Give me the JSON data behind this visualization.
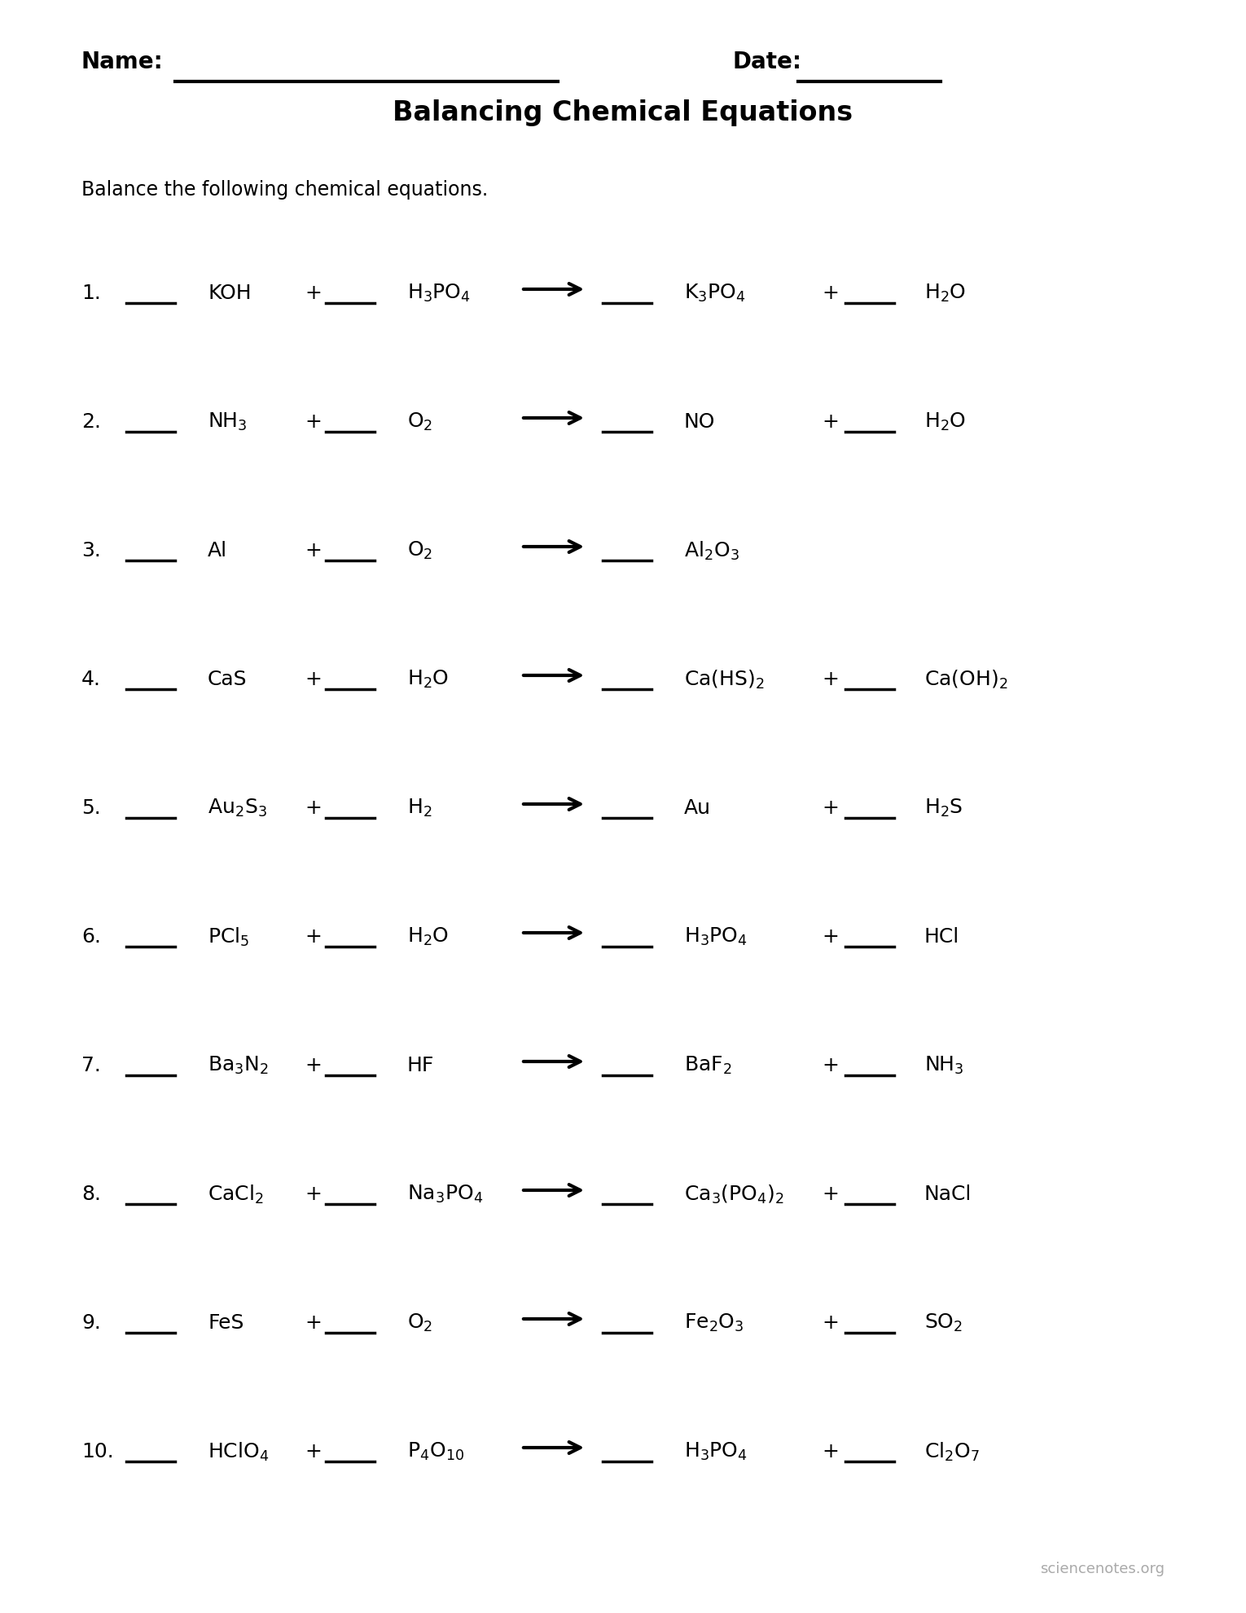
{
  "title": "Balancing Chemical Equations",
  "instruction": "Balance the following chemical equations.",
  "name_label": "Name:",
  "date_label": "Date:",
  "background": "#ffffff",
  "equations": [
    {
      "num": "1.",
      "items": [
        "KOH",
        "+",
        "H$_3$PO$_4$",
        "K$_3$PO$_4$",
        "+",
        "H$_2$O"
      ],
      "short": false
    },
    {
      "num": "2.",
      "items": [
        "NH$_3$",
        "+",
        "O$_2$",
        "NO",
        "+",
        "H$_2$O"
      ],
      "short": false
    },
    {
      "num": "3.",
      "items": [
        "Al",
        "+",
        "O$_2$",
        "Al$_2$O$_3$",
        "",
        ""
      ],
      "short": true
    },
    {
      "num": "4.",
      "items": [
        "CaS",
        "+",
        "H$_2$O",
        "Ca(HS)$_2$",
        "+",
        "Ca(OH)$_2$"
      ],
      "short": false
    },
    {
      "num": "5.",
      "items": [
        "Au$_2$S$_3$",
        "+",
        "H$_2$",
        "Au",
        "+",
        "H$_2$S"
      ],
      "short": false
    },
    {
      "num": "6.",
      "items": [
        "PCl$_5$",
        "+",
        "H$_2$O",
        "H$_3$PO$_4$",
        "+",
        "HCl"
      ],
      "short": false
    },
    {
      "num": "7.",
      "items": [
        "Ba$_3$N$_2$",
        "+",
        "HF",
        "BaF$_2$",
        "+",
        "NH$_3$"
      ],
      "short": false
    },
    {
      "num": "8.",
      "items": [
        "CaCl$_2$",
        "+",
        "Na$_3$PO$_4$",
        "Ca$_3$(PO$_4$)$_2$",
        "+",
        "NaCl"
      ],
      "short": false
    },
    {
      "num": "9.",
      "items": [
        "FeS",
        "+",
        "O$_2$",
        "Fe$_2$O$_3$",
        "+",
        "SO$_2$"
      ],
      "short": false
    },
    {
      "num": "10.",
      "items": [
        "HClO$_4$",
        "+",
        "P$_4$O$_{10}$",
        "H$_3$PO$_4$",
        "+",
        "Cl$_2$O$_7$"
      ],
      "short": false
    }
  ],
  "footer": "sciencenotes.org",
  "title_fontsize": 24,
  "header_fontsize": 20,
  "instr_fontsize": 17,
  "eq_fontsize": 18,
  "num_fontsize": 18,
  "footer_fontsize": 13
}
